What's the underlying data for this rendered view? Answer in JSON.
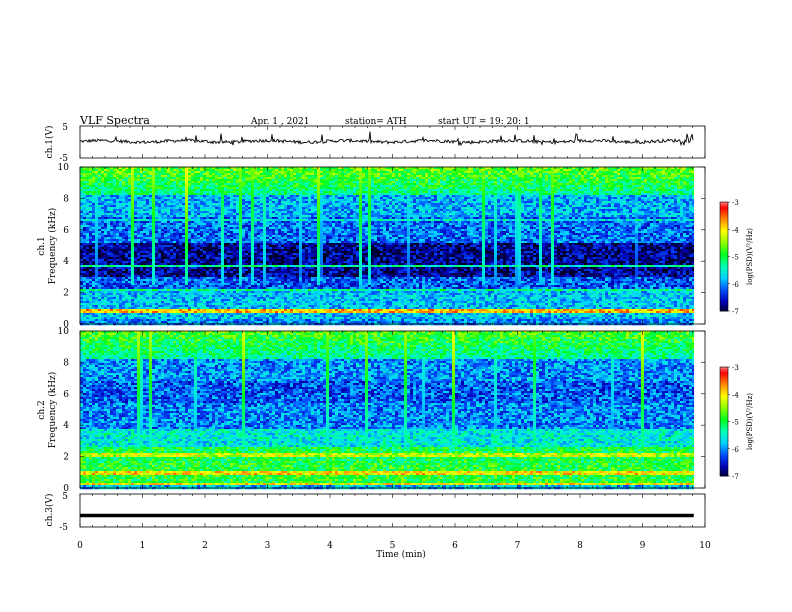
{
  "header": {
    "title": "VLF  Spectra",
    "date": "Apr. 1  , 2021",
    "station": "station= ATH",
    "start_ut": "start  UT  =    19: 20: 1"
  },
  "chart_data": [
    {
      "type": "line",
      "name": "ch1-waveform",
      "ylabel": "ch.1(V)",
      "ylim": [
        -5,
        5
      ],
      "yticks": [
        "5",
        "-5"
      ],
      "xlim": [
        0,
        10
      ],
      "baseline": 0.2,
      "noise_amplitude": 0.5,
      "end_time": 9.82
    },
    {
      "type": "heatmap",
      "name": "ch1-spectrogram",
      "ylabel": "ch.1\nFrequency  (kHz)",
      "ylim": [
        0,
        10
      ],
      "yticks": [
        "0",
        "2",
        "4",
        "6",
        "8",
        "10"
      ],
      "xlim": [
        0,
        10
      ],
      "end_time": 9.82,
      "colorbar": {
        "label": "log(PSD)(V²/Hz)",
        "ticks": [
          "-3",
          "-4",
          "-5",
          "-6",
          "-7"
        ],
        "range": [
          -7,
          -3
        ]
      }
    },
    {
      "type": "heatmap",
      "name": "ch2-spectrogram",
      "ylabel": "ch.2\nFrequency  (kHz)",
      "ylim": [
        0,
        10
      ],
      "yticks": [
        "0",
        "2",
        "4",
        "6",
        "8",
        "10"
      ],
      "xlim": [
        0,
        10
      ],
      "end_time": 9.82,
      "colorbar": {
        "label": "log(PSD)(V²/Hz)",
        "ticks": [
          "-3",
          "-4",
          "-5",
          "-6",
          "-7"
        ],
        "range": [
          -7,
          -3
        ]
      }
    },
    {
      "type": "line",
      "name": "ch3-waveform",
      "ylabel": "ch.3(V)",
      "ylim": [
        -5,
        5
      ],
      "yticks": [
        "5",
        "-5"
      ],
      "xlim": [
        0,
        10
      ],
      "baseline": -1.5,
      "end_time": 9.82
    }
  ],
  "xaxis": {
    "label": "Time  (min)",
    "ticks": [
      "0",
      "1",
      "2",
      "3",
      "4",
      "5",
      "6",
      "7",
      "8",
      "9",
      "10"
    ]
  },
  "colors": {
    "colormap": [
      "#000020",
      "#0000b4",
      "#0050ff",
      "#00d2ff",
      "#00ffb4",
      "#00ff1e",
      "#8cff00",
      "#ffff00",
      "#ff8c00",
      "#ff0000",
      "#ffffff"
    ]
  }
}
